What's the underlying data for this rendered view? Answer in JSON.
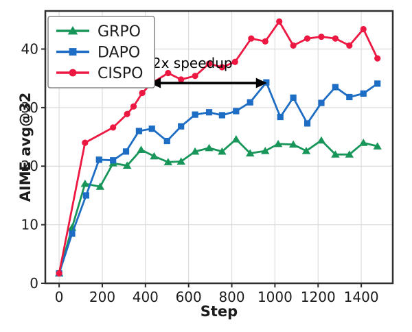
{
  "figure": {
    "background": "#ffffff",
    "frame_color": "#2f2f2f",
    "grid_color": "#dcdcdc",
    "tick_color": "#2b2b2b",
    "text_color": "#1c1c1c",
    "legend_border_color": "#8a8a8a",
    "annotation_color": "#000000"
  },
  "chart_data": {
    "type": "line",
    "title": "",
    "xlabel": "Step",
    "ylabel": "AIME avg@32",
    "xlim": [
      -64,
      1546
    ],
    "ylim": [
      0,
      46.5
    ],
    "xticks": [
      0,
      200,
      400,
      600,
      800,
      1000,
      1200,
      1400
    ],
    "yticks": [
      0,
      10,
      20,
      30,
      40
    ],
    "grid": true,
    "legend_position": "upper-left",
    "series": [
      {
        "name": "GRPO",
        "color": "#18965A",
        "marker": "triangle",
        "x": [
          0,
          60,
          120,
          190,
          250,
          315,
          380,
          440,
          505,
          565,
          630,
          695,
          755,
          820,
          885,
          955,
          1015,
          1085,
          1145,
          1215,
          1280,
          1345,
          1410,
          1475
        ],
        "y": [
          1.7,
          9.5,
          17.0,
          16.5,
          20.5,
          20.1,
          22.8,
          21.7,
          20.7,
          20.8,
          22.5,
          23.1,
          22.5,
          24.6,
          22.2,
          22.6,
          23.8,
          23.7,
          22.6,
          24.4,
          22.0,
          22.0,
          24.0,
          23.4
        ]
      },
      {
        "name": "DAPO",
        "color": "#1D6DC4",
        "marker": "square",
        "x": [
          0,
          60,
          125,
          185,
          250,
          310,
          370,
          430,
          500,
          565,
          630,
          695,
          755,
          820,
          885,
          960,
          1025,
          1085,
          1150,
          1215,
          1280,
          1345,
          1410,
          1475
        ],
        "y": [
          1.7,
          8.5,
          15.0,
          21.1,
          21.0,
          22.5,
          26.0,
          26.4,
          24.3,
          26.8,
          28.8,
          29.2,
          28.7,
          29.4,
          30.9,
          34.3,
          28.4,
          31.7,
          27.3,
          30.8,
          33.5,
          31.8,
          32.4,
          34.1
        ]
      },
      {
        "name": "CISPO",
        "color": "#EC1842",
        "marker": "circle",
        "x": [
          0,
          120,
          250,
          315,
          345,
          385,
          430,
          505,
          565,
          630,
          695,
          755,
          815,
          890,
          955,
          1020,
          1085,
          1150,
          1215,
          1280,
          1345,
          1410,
          1475
        ],
        "y": [
          1.7,
          24.0,
          26.6,
          28.9,
          30.2,
          32.5,
          34.2,
          35.9,
          34.8,
          35.4,
          37.5,
          36.9,
          37.8,
          41.8,
          41.3,
          44.7,
          40.6,
          41.8,
          42.1,
          41.8,
          40.6,
          43.4,
          38.4
        ]
      }
    ],
    "annotation": {
      "text": "2x speedup",
      "text_x": 432,
      "text_y": 36.8,
      "arrow": {
        "x1": 420,
        "x2": 963,
        "y": 34.2,
        "double_headed": true
      }
    }
  }
}
